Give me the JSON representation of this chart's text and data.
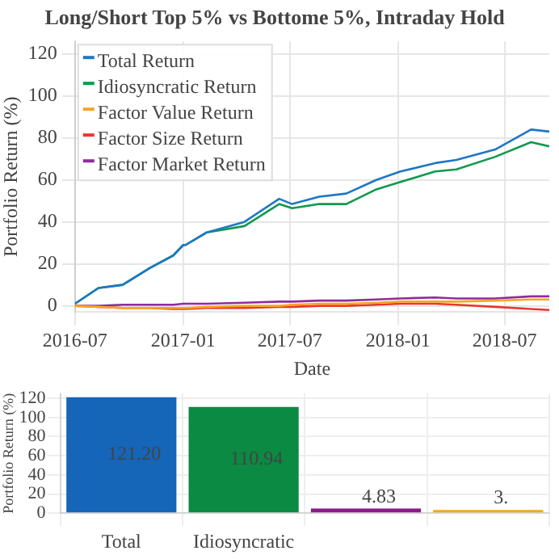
{
  "chart_data": [
    {
      "type": "line",
      "title": "Long/Short Top 5% vs Bottome 5%, Intraday Hold",
      "xlabel": "Date",
      "ylabel": "Portfolio Return (%)",
      "xlim": [
        "2016-07-01",
        "2018-09-15"
      ],
      "xticks": [
        "2016-07",
        "2017-01",
        "2017-07",
        "2018-01",
        "2018-07"
      ],
      "ylim": [
        -3,
        126
      ],
      "yticks": [
        0,
        20,
        40,
        60,
        80,
        100,
        120
      ],
      "grid": true,
      "legend": "top left",
      "marker": "none",
      "line_style": "solid",
      "x": [
        "2016-07-01",
        "2016-08-10",
        "2016-09-20",
        "2016-11-05",
        "2016-12-15",
        "2017-01-01",
        "2017-01-05",
        "2017-02-10",
        "2017-04-15",
        "2017-06-13",
        "2017-07-05",
        "2017-08-20",
        "2017-10-05",
        "2017-11-25",
        "2018-01-05",
        "2018-03-05",
        "2018-04-10",
        "2018-06-15",
        "2018-08-15",
        "2018-09-15"
      ],
      "series": [
        {
          "name": "Total Return",
          "color": "#1f77c4",
          "values": [
            1,
            8.5,
            10,
            18,
            24,
            29,
            29,
            35,
            40,
            51,
            48.5,
            52,
            53.5,
            60,
            64,
            68,
            69.5,
            74.5,
            84,
            83
          ]
        },
        {
          "name": "Idiosyncratic Return",
          "color": "#0e9a4c",
          "values": [
            1,
            8.5,
            10,
            18,
            24,
            29,
            29,
            35,
            38,
            48.5,
            46.5,
            48.5,
            48.5,
            55.5,
            59,
            64,
            65,
            71,
            78,
            76
          ]
        },
        {
          "name": "Factor Value Return",
          "color": "#f5a623",
          "values": [
            0,
            -0.5,
            -1,
            -1,
            -1,
            -1,
            -1,
            -0.5,
            0,
            0,
            0.5,
            1,
            1,
            1.5,
            2,
            2,
            2,
            2.5,
            3,
            3
          ]
        },
        {
          "name": "Factor Size Return",
          "color": "#e8372c",
          "values": [
            0,
            -0.5,
            -1,
            -1,
            -1.5,
            -1.5,
            -1.5,
            -1,
            -1,
            -0.5,
            -0.5,
            0,
            0,
            0.5,
            1,
            1,
            0.5,
            -0.5,
            -1.5,
            -2
          ]
        },
        {
          "name": "Factor Market Return",
          "color": "#8e2c9e",
          "values": [
            0,
            0,
            0.5,
            0.5,
            0.5,
            1,
            1,
            1,
            1.5,
            2,
            2,
            2.5,
            2.5,
            3,
            3.5,
            4,
            3.5,
            3.5,
            4.5,
            4.5
          ]
        }
      ]
    },
    {
      "type": "bar",
      "ylabel": "Portfolio Return (%)",
      "categories": [
        "Total",
        "Idiosyncratic",
        null,
        null
      ],
      "values": [
        121.2,
        110.94,
        4.83,
        3.4
      ],
      "colors": [
        "#1565b8",
        "#0a8a43",
        "#8b1a8b",
        "#f5a623"
      ],
      "value_labels": [
        "121.20",
        "110.94",
        "4.83",
        "3."
      ],
      "ylim": [
        0,
        125
      ],
      "yticks": [
        0,
        20,
        40,
        60,
        80,
        100,
        120
      ],
      "grid": true
    }
  ]
}
